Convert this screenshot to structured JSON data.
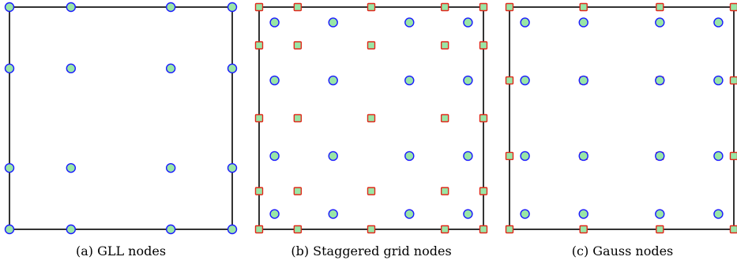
{
  "panels": [
    {
      "caption": "(a) GLL nodes",
      "circle_nodes_x": [
        0,
        0.276,
        0.724,
        1
      ],
      "circle_nodes_y": [
        0,
        0.276,
        0.724,
        1
      ],
      "square_nodes_x": [],
      "square_nodes_y": []
    },
    {
      "caption": "(b) Staggered grid nodes",
      "circle_nodes_x": [
        0.069,
        0.33,
        0.67,
        0.931
      ],
      "circle_nodes_y": [
        0.069,
        0.33,
        0.67,
        0.931
      ],
      "square_nodes_x": [
        0,
        0.172,
        0.5,
        0.828,
        1
      ],
      "square_nodes_y": [
        0,
        0.172,
        0.5,
        0.828,
        1
      ]
    },
    {
      "caption": "(c) Gauss nodes",
      "circle_nodes_x": [
        0.069,
        0.33,
        0.67,
        0.931
      ],
      "circle_nodes_y": [
        0.069,
        0.33,
        0.67,
        0.931
      ],
      "square_nodes_x": [
        0,
        0.33,
        0.67,
        1
      ],
      "square_nodes_y": [
        0,
        0.33,
        0.67,
        1
      ]
    }
  ],
  "colors": {
    "circle_fill": "#99e6a6",
    "circle_stroke": "#1a1aff",
    "square_fill": "#99e6a6",
    "square_stroke": "#e0281a",
    "frame": "#000000"
  }
}
